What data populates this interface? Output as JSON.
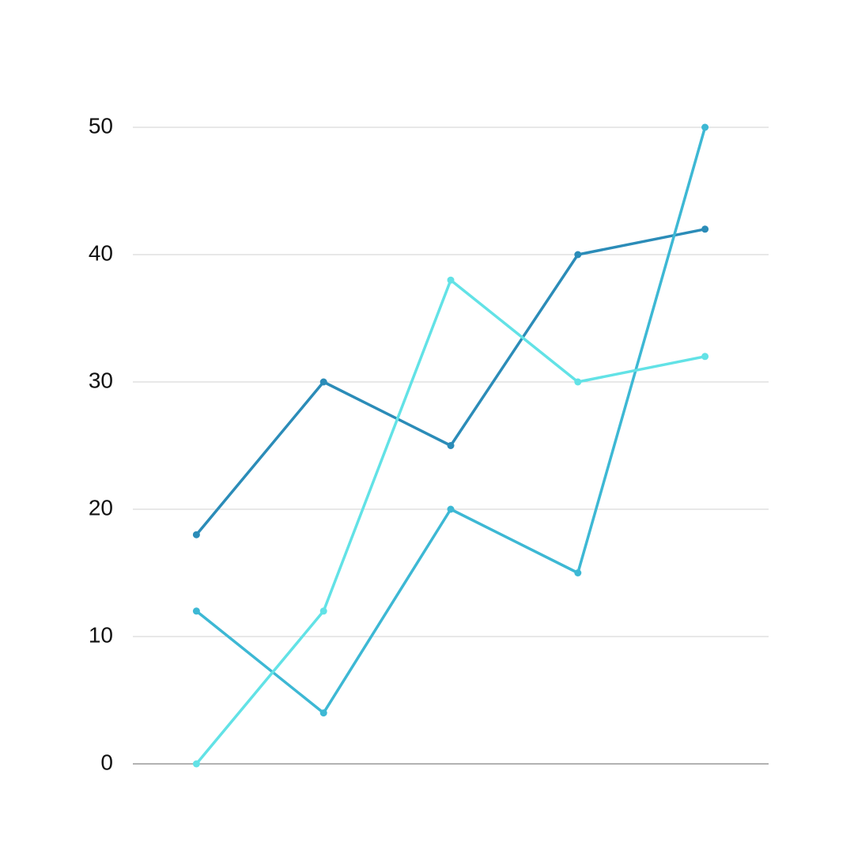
{
  "chart_data": {
    "type": "line",
    "categories": [
      null,
      null,
      null,
      null,
      null
    ],
    "series": [
      {
        "color": "#2b8cb8",
        "values": [
          18,
          30,
          25,
          40,
          42
        ]
      },
      {
        "color": "#3db8d4",
        "values": [
          12,
          4,
          20,
          15,
          50
        ]
      },
      {
        "color": "#62e2e6",
        "values": [
          0,
          12,
          38,
          30,
          32
        ]
      }
    ],
    "ylim": [
      0,
      50
    ],
    "yticks": [
      0,
      10,
      20,
      30,
      40,
      50
    ],
    "grid": true
  }
}
